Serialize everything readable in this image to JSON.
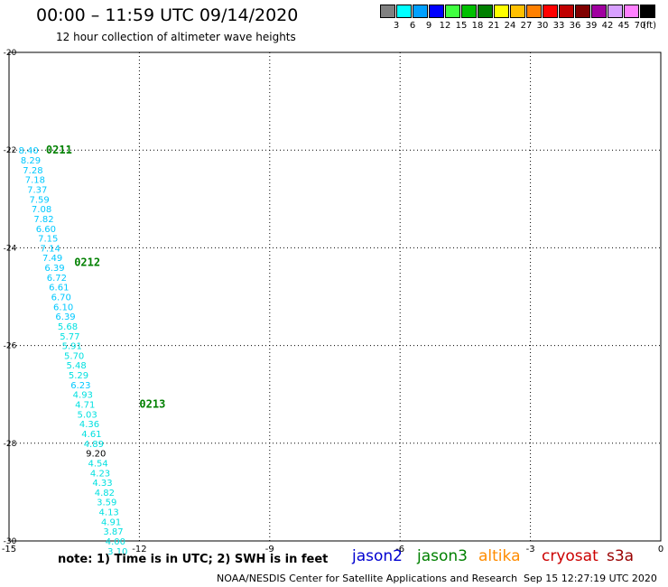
{
  "header": {
    "title": "00:00 – 11:59 UTC 09/14/2020",
    "subtitle": "12 hour collection of altimeter wave heights"
  },
  "legend": {
    "unit": "(ft)",
    "bins": [
      {
        "color": "#808080",
        "label": "3"
      },
      {
        "color": "#00ffff",
        "label": "6"
      },
      {
        "color": "#00a0ff",
        "label": "9"
      },
      {
        "color": "#0000ff",
        "label": "12"
      },
      {
        "color": "#40ff40",
        "label": "15"
      },
      {
        "color": "#00c000",
        "label": "18"
      },
      {
        "color": "#008000",
        "label": "21"
      },
      {
        "color": "#ffff00",
        "label": "24"
      },
      {
        "color": "#ffc000",
        "label": "27"
      },
      {
        "color": "#ff8000",
        "label": "30"
      },
      {
        "color": "#ff0000",
        "label": "33"
      },
      {
        "color": "#c00000",
        "label": "36"
      },
      {
        "color": "#800000",
        "label": "39"
      },
      {
        "color": "#a000a0",
        "label": "42"
      },
      {
        "color": "#d8a0ff",
        "label": "45"
      },
      {
        "color": "#ff80ff",
        "label": "70"
      },
      {
        "color": "#000000",
        "label": ""
      }
    ]
  },
  "chart_data": {
    "type": "scatter",
    "title": "00:00 – 11:59 UTC 09/14/2020",
    "subtitle": "12 hour collection of altimeter wave heights",
    "xlim": [
      -15,
      0
    ],
    "ylim": [
      -30,
      -20
    ],
    "xticks": [
      -15,
      -12,
      -9,
      -6,
      -3,
      0
    ],
    "yticks": [
      -20,
      -22,
      -24,
      -26,
      -28,
      -30
    ],
    "grid": true,
    "points": [
      {
        "x": -14.8,
        "y": -22.0,
        "v": "8.40",
        "c": "#00c8ff"
      },
      {
        "x": -14.75,
        "y": -22.2,
        "v": "8.29",
        "c": "#00c8ff"
      },
      {
        "x": -14.7,
        "y": -22.4,
        "v": "7.28",
        "c": "#00c8ff"
      },
      {
        "x": -14.65,
        "y": -22.6,
        "v": "7.18",
        "c": "#00c8ff"
      },
      {
        "x": -14.6,
        "y": -22.8,
        "v": "7.37",
        "c": "#00c8ff"
      },
      {
        "x": -14.55,
        "y": -23.0,
        "v": "7.59",
        "c": "#00c8ff"
      },
      {
        "x": -14.5,
        "y": -23.2,
        "v": "7.08",
        "c": "#00c8ff"
      },
      {
        "x": -14.45,
        "y": -23.4,
        "v": "7.82",
        "c": "#00c8ff"
      },
      {
        "x": -14.4,
        "y": -23.6,
        "v": "6.60",
        "c": "#00c8ff"
      },
      {
        "x": -14.35,
        "y": -23.8,
        "v": "7.15",
        "c": "#00c8ff"
      },
      {
        "x": -14.3,
        "y": -24.0,
        "v": "7.14",
        "c": "#00c8ff"
      },
      {
        "x": -14.25,
        "y": -24.2,
        "v": "7.49",
        "c": "#00c8ff"
      },
      {
        "x": -14.2,
        "y": -24.4,
        "v": "6.39",
        "c": "#00c8ff"
      },
      {
        "x": -14.15,
        "y": -24.6,
        "v": "6.72",
        "c": "#00c8ff"
      },
      {
        "x": -14.1,
        "y": -24.8,
        "v": "6.61",
        "c": "#00c8ff"
      },
      {
        "x": -14.05,
        "y": -25.0,
        "v": "6.70",
        "c": "#00c8ff"
      },
      {
        "x": -14.0,
        "y": -25.2,
        "v": "6.10",
        "c": "#00c8ff"
      },
      {
        "x": -13.95,
        "y": -25.4,
        "v": "6.39",
        "c": "#00c8ff"
      },
      {
        "x": -13.9,
        "y": -25.6,
        "v": "5.68",
        "c": "#00e0e0"
      },
      {
        "x": -13.85,
        "y": -25.8,
        "v": "5.77",
        "c": "#00e0e0"
      },
      {
        "x": -13.8,
        "y": -26.0,
        "v": "5.91",
        "c": "#00e0e0"
      },
      {
        "x": -13.75,
        "y": -26.2,
        "v": "5.70",
        "c": "#00e0e0"
      },
      {
        "x": -13.7,
        "y": -26.4,
        "v": "5.48",
        "c": "#00e0e0"
      },
      {
        "x": -13.65,
        "y": -26.6,
        "v": "5.29",
        "c": "#00e0e0"
      },
      {
        "x": -13.6,
        "y": -26.8,
        "v": "6.23",
        "c": "#00c8ff"
      },
      {
        "x": -13.55,
        "y": -27.0,
        "v": "4.93",
        "c": "#00e0e0"
      },
      {
        "x": -13.5,
        "y": -27.2,
        "v": "4.71",
        "c": "#00e0e0"
      },
      {
        "x": -13.45,
        "y": -27.4,
        "v": "5.03",
        "c": "#00e0e0"
      },
      {
        "x": -13.4,
        "y": -27.6,
        "v": "4.36",
        "c": "#00e0e0"
      },
      {
        "x": -13.35,
        "y": -27.8,
        "v": "4.61",
        "c": "#00e0e0"
      },
      {
        "x": -13.3,
        "y": -28.0,
        "v": "4.89",
        "c": "#00e0e0"
      },
      {
        "x": -13.25,
        "y": -28.2,
        "v": "9.20",
        "c": "#000000"
      },
      {
        "x": -13.2,
        "y": -28.4,
        "v": "4.54",
        "c": "#00e0e0"
      },
      {
        "x": -13.15,
        "y": -28.6,
        "v": "4.23",
        "c": "#00e0e0"
      },
      {
        "x": -13.1,
        "y": -28.8,
        "v": "4.33",
        "c": "#00e0e0"
      },
      {
        "x": -13.05,
        "y": -29.0,
        "v": "4.82",
        "c": "#00e0e0"
      },
      {
        "x": -13.0,
        "y": -29.2,
        "v": "3.59",
        "c": "#00e0e0"
      },
      {
        "x": -12.95,
        "y": -29.4,
        "v": "4.13",
        "c": "#00e0e0"
      },
      {
        "x": -12.9,
        "y": -29.6,
        "v": "4.91",
        "c": "#00e0e0"
      },
      {
        "x": -12.85,
        "y": -29.8,
        "v": "3.87",
        "c": "#00e0e0"
      },
      {
        "x": -12.8,
        "y": -30.0,
        "v": "4.00",
        "c": "#00e0e0"
      },
      {
        "x": -12.75,
        "y": -30.2,
        "v": "3.10",
        "c": "#00e0e0"
      }
    ],
    "time_labels": [
      {
        "x": -14.15,
        "y": -22.0,
        "text": "0211"
      },
      {
        "x": -13.5,
        "y": -24.3,
        "text": "0212"
      },
      {
        "x": -12.0,
        "y": -27.2,
        "text": "0213"
      }
    ]
  },
  "footer": {
    "note": "note:  1) Time is in UTC;  2) SWH is in feet",
    "satellites": [
      {
        "name": "jason2",
        "color": "#0000d0"
      },
      {
        "name": "jason3",
        "color": "#008000"
      },
      {
        "name": "altika",
        "color": "#ff8c00"
      },
      {
        "name": "cryosat",
        "color": "#cc0000"
      },
      {
        "name": "s3a",
        "color": "#990000"
      }
    ],
    "org": "NOAA/NESDIS Center for Satellite Applications and Research",
    "timestamp": "Sep 15 12:27:19 UTC 2020"
  }
}
